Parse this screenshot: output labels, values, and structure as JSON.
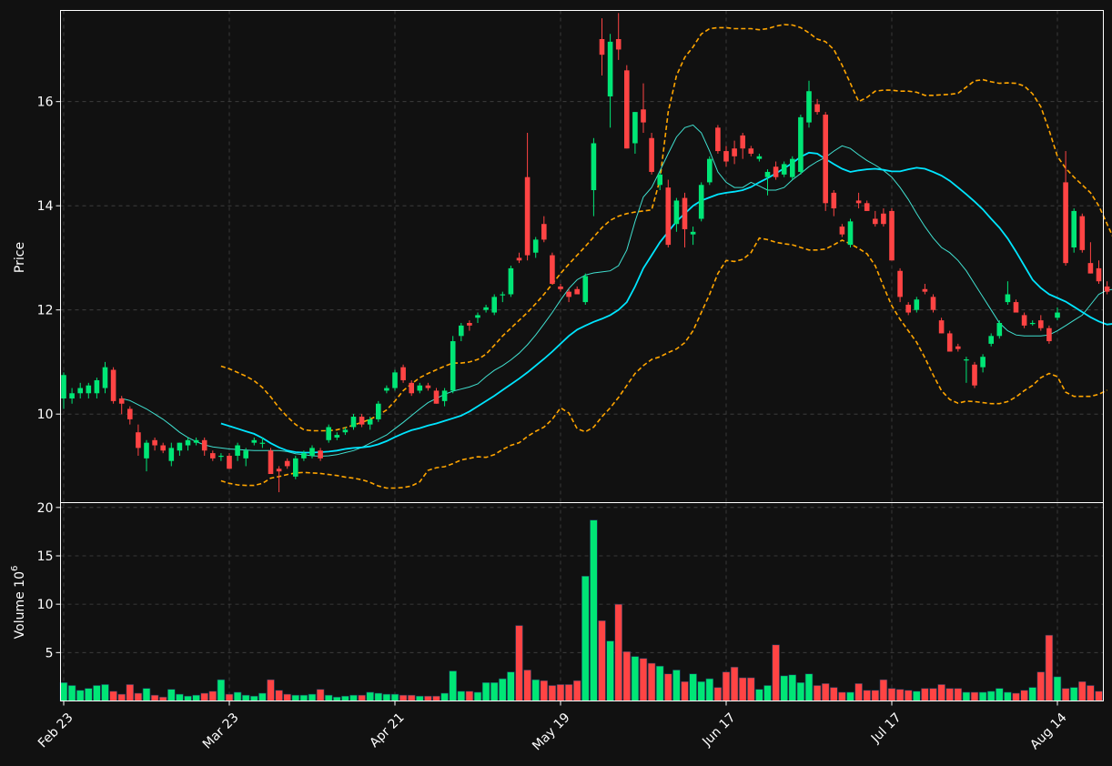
{
  "chart_data": {
    "type": "candlestick",
    "style": {
      "background": "#111111",
      "up_color": "#00e676",
      "down_color": "#ff4444",
      "sma_short_color": "#40e0d0",
      "sma_long_color": "#00e5ff",
      "band_color": "#ffa500",
      "grid": true
    },
    "price_panel": {
      "ylabel": "Price",
      "ylim": [
        8.3,
        17.75
      ],
      "yticks": [
        "10",
        "12",
        "14",
        "16"
      ],
      "ytick_values": [
        10,
        12,
        14,
        16
      ]
    },
    "volume_panel": {
      "ylabel": "Volume  10",
      "ylabel_exp": "6",
      "ylim": [
        0,
        20.5
      ],
      "yticks": [
        "5",
        "10",
        "15",
        "20"
      ],
      "ytick_values": [
        5,
        10,
        15,
        20
      ]
    },
    "xticks": [
      {
        "label": "Feb 23",
        "index": 0
      },
      {
        "label": "Mar 23",
        "index": 20
      },
      {
        "label": "Apr 21",
        "index": 40
      },
      {
        "label": "May 19",
        "index": 60
      },
      {
        "label": "Jun 17",
        "index": 80
      },
      {
        "label": "Jul 17",
        "index": 100
      },
      {
        "label": "Aug 14",
        "index": 120
      }
    ],
    "ohlc": [
      [
        10.3,
        10.8,
        10.1,
        10.75
      ],
      [
        10.3,
        10.5,
        10.2,
        10.4
      ],
      [
        10.4,
        10.6,
        10.3,
        10.5
      ],
      [
        10.4,
        10.6,
        10.3,
        10.55
      ],
      [
        10.4,
        10.7,
        10.3,
        10.65
      ],
      [
        10.5,
        11.0,
        10.4,
        10.9
      ],
      [
        10.85,
        10.9,
        10.2,
        10.25
      ],
      [
        10.3,
        10.35,
        10.0,
        10.2
      ],
      [
        10.1,
        10.15,
        9.8,
        9.9
      ],
      [
        9.65,
        9.8,
        9.2,
        9.35
      ],
      [
        9.15,
        9.5,
        8.9,
        9.45
      ],
      [
        9.5,
        9.55,
        9.3,
        9.4
      ],
      [
        9.4,
        9.45,
        9.25,
        9.3
      ],
      [
        9.1,
        9.45,
        9.0,
        9.35
      ],
      [
        9.3,
        9.45,
        9.2,
        9.45
      ],
      [
        9.4,
        9.55,
        9.3,
        9.5
      ],
      [
        9.45,
        9.55,
        9.4,
        9.5
      ],
      [
        9.5,
        9.55,
        9.2,
        9.3
      ],
      [
        9.25,
        9.3,
        9.1,
        9.15
      ],
      [
        9.2,
        9.25,
        9.1,
        9.2
      ],
      [
        9.2,
        9.25,
        8.95,
        8.95
      ],
      [
        9.2,
        9.45,
        9.1,
        9.4
      ],
      [
        9.15,
        9.35,
        9.0,
        9.3
      ],
      [
        9.45,
        9.55,
        9.4,
        9.5
      ],
      [
        9.45,
        9.55,
        9.35,
        9.45
      ],
      [
        9.3,
        9.35,
        8.85,
        8.85
      ],
      [
        8.95,
        9.0,
        8.5,
        8.9
      ],
      [
        9.1,
        9.15,
        8.95,
        9.0
      ],
      [
        8.8,
        9.2,
        8.75,
        9.15
      ],
      [
        9.15,
        9.3,
        9.1,
        9.25
      ],
      [
        9.2,
        9.4,
        9.15,
        9.35
      ],
      [
        9.3,
        9.35,
        9.1,
        9.15
      ],
      [
        9.5,
        9.8,
        9.45,
        9.75
      ],
      [
        9.55,
        9.65,
        9.5,
        9.6
      ],
      [
        9.65,
        9.75,
        9.6,
        9.7
      ],
      [
        9.75,
        10.0,
        9.7,
        9.95
      ],
      [
        9.95,
        10.0,
        9.75,
        9.8
      ],
      [
        9.8,
        9.95,
        9.7,
        9.9
      ],
      [
        9.9,
        10.25,
        9.85,
        10.2
      ],
      [
        10.45,
        10.55,
        10.4,
        10.5
      ],
      [
        10.5,
        10.85,
        10.45,
        10.8
      ],
      [
        10.9,
        10.95,
        10.6,
        10.65
      ],
      [
        10.6,
        10.65,
        10.35,
        10.4
      ],
      [
        10.45,
        10.6,
        10.4,
        10.55
      ],
      [
        10.55,
        10.6,
        10.45,
        10.5
      ],
      [
        10.45,
        10.5,
        10.2,
        10.2
      ],
      [
        10.25,
        10.5,
        10.15,
        10.45
      ],
      [
        10.45,
        11.5,
        10.4,
        11.4
      ],
      [
        11.5,
        11.75,
        11.4,
        11.7
      ],
      [
        11.75,
        11.8,
        11.6,
        11.7
      ],
      [
        11.85,
        11.95,
        11.75,
        11.9
      ],
      [
        12.0,
        12.1,
        11.95,
        12.05
      ],
      [
        11.95,
        12.3,
        11.9,
        12.25
      ],
      [
        12.3,
        12.35,
        12.15,
        12.3
      ],
      [
        12.3,
        12.85,
        12.25,
        12.8
      ],
      [
        13.0,
        13.1,
        12.9,
        12.95
      ],
      [
        14.55,
        15.4,
        12.95,
        13.05
      ],
      [
        13.1,
        13.4,
        13.0,
        13.35
      ],
      [
        13.65,
        13.8,
        13.3,
        13.35
      ],
      [
        13.05,
        13.1,
        12.5,
        12.5
      ],
      [
        12.45,
        12.5,
        12.35,
        12.4
      ],
      [
        12.35,
        12.4,
        12.15,
        12.25
      ],
      [
        12.4,
        12.45,
        12.3,
        12.3
      ],
      [
        12.15,
        12.7,
        12.1,
        12.65
      ],
      [
        14.3,
        15.3,
        13.8,
        15.2
      ],
      [
        17.2,
        17.6,
        16.5,
        16.9
      ],
      [
        16.1,
        17.3,
        15.5,
        17.15
      ],
      [
        17.2,
        17.7,
        16.8,
        17.0
      ],
      [
        16.6,
        16.7,
        15.1,
        15.1
      ],
      [
        15.2,
        15.8,
        15.0,
        15.8
      ],
      [
        15.85,
        16.35,
        15.4,
        15.6
      ],
      [
        15.3,
        15.4,
        14.6,
        14.65
      ],
      [
        14.4,
        14.65,
        14.3,
        14.6
      ],
      [
        14.35,
        14.5,
        13.2,
        13.25
      ],
      [
        13.65,
        14.15,
        13.5,
        14.1
      ],
      [
        14.15,
        14.25,
        13.2,
        13.55
      ],
      [
        13.45,
        13.6,
        13.25,
        13.5
      ],
      [
        13.75,
        14.45,
        13.7,
        14.4
      ],
      [
        14.45,
        14.95,
        14.4,
        14.9
      ],
      [
        15.5,
        15.55,
        15.0,
        15.05
      ],
      [
        15.05,
        15.15,
        14.75,
        14.85
      ],
      [
        15.1,
        15.25,
        14.8,
        14.95
      ],
      [
        15.35,
        15.4,
        14.9,
        15.1
      ],
      [
        15.1,
        15.15,
        14.95,
        15.0
      ],
      [
        14.9,
        15.0,
        14.85,
        14.95
      ],
      [
        14.55,
        14.7,
        14.2,
        14.65
      ],
      [
        14.75,
        14.85,
        14.5,
        14.55
      ],
      [
        14.6,
        14.85,
        14.55,
        14.8
      ],
      [
        14.55,
        14.95,
        14.5,
        14.9
      ],
      [
        14.65,
        15.75,
        14.6,
        15.7
      ],
      [
        15.6,
        16.4,
        15.5,
        16.2
      ],
      [
        15.95,
        16.05,
        15.75,
        15.8
      ],
      [
        15.75,
        15.8,
        13.9,
        14.05
      ],
      [
        14.25,
        14.3,
        13.8,
        13.95
      ],
      [
        13.6,
        13.65,
        13.4,
        13.45
      ],
      [
        13.25,
        13.75,
        13.2,
        13.7
      ],
      [
        14.1,
        14.25,
        13.95,
        14.05
      ],
      [
        14.05,
        14.1,
        13.9,
        13.9
      ],
      [
        13.75,
        13.9,
        13.6,
        13.65
      ],
      [
        13.85,
        13.95,
        13.6,
        13.65
      ],
      [
        13.9,
        13.95,
        12.95,
        12.95
      ],
      [
        12.75,
        12.8,
        12.15,
        12.25
      ],
      [
        12.1,
        12.15,
        11.9,
        11.95
      ],
      [
        12.0,
        12.25,
        11.95,
        12.2
      ],
      [
        12.4,
        12.5,
        12.3,
        12.35
      ],
      [
        12.25,
        12.3,
        11.95,
        12.0
      ],
      [
        11.8,
        11.85,
        11.55,
        11.55
      ],
      [
        11.55,
        11.6,
        11.2,
        11.2
      ],
      [
        11.3,
        11.35,
        11.2,
        11.25
      ],
      [
        11.05,
        11.1,
        10.6,
        11.05
      ],
      [
        10.95,
        11.0,
        10.5,
        10.55
      ],
      [
        10.9,
        11.15,
        10.8,
        11.1
      ],
      [
        11.35,
        11.55,
        11.3,
        11.5
      ],
      [
        11.5,
        11.8,
        11.45,
        11.75
      ],
      [
        12.15,
        12.55,
        12.1,
        12.3
      ],
      [
        12.15,
        12.2,
        11.95,
        11.95
      ],
      [
        11.9,
        11.95,
        11.65,
        11.7
      ],
      [
        11.75,
        11.8,
        11.7,
        11.75
      ],
      [
        11.8,
        11.9,
        11.6,
        11.65
      ],
      [
        11.65,
        11.7,
        11.35,
        11.4
      ],
      [
        11.85,
        12.05,
        11.8,
        11.95
      ],
      [
        14.45,
        15.05,
        12.85,
        12.9
      ],
      [
        13.2,
        13.95,
        13.1,
        13.9
      ],
      [
        13.8,
        13.85,
        13.1,
        13.15
      ],
      [
        12.9,
        13.3,
        12.7,
        12.7
      ],
      [
        12.8,
        12.95,
        12.5,
        12.55
      ],
      [
        12.45,
        12.55,
        12.3,
        12.35
      ],
      [
        12.45,
        12.7,
        12.2,
        12.5
      ]
    ],
    "volume": [
      1.9,
      1.6,
      1.1,
      1.3,
      1.6,
      1.7,
      1.0,
      0.7,
      1.7,
      0.8,
      1.3,
      0.6,
      0.4,
      1.2,
      0.7,
      0.5,
      0.6,
      0.8,
      1.0,
      2.2,
      0.7,
      0.9,
      0.6,
      0.5,
      0.8,
      2.2,
      1.1,
      0.7,
      0.6,
      0.6,
      0.7,
      1.2,
      0.6,
      0.4,
      0.5,
      0.6,
      0.6,
      0.9,
      0.8,
      0.7,
      0.7,
      0.6,
      0.6,
      0.5,
      0.5,
      0.5,
      0.8,
      3.1,
      1.0,
      1.0,
      0.9,
      1.9,
      1.9,
      2.3,
      3.0,
      7.8,
      3.2,
      2.2,
      2.1,
      1.6,
      1.7,
      1.7,
      2.1,
      12.9,
      18.7,
      8.3,
      6.2,
      10.0,
      5.1,
      4.6,
      4.4,
      3.9,
      3.6,
      2.8,
      3.2,
      2.0,
      2.8,
      2.0,
      2.3,
      1.4,
      3.0,
      3.5,
      2.4,
      2.4,
      1.2,
      1.6,
      5.8,
      2.6,
      2.7,
      1.9,
      2.8,
      1.6,
      1.8,
      1.4,
      0.9,
      0.9,
      1.8,
      1.1,
      1.1,
      2.2,
      1.3,
      1.2,
      1.1,
      1.0,
      1.3,
      1.3,
      1.7,
      1.3,
      1.3,
      0.9,
      0.9,
      0.9,
      1.0,
      1.3,
      0.9,
      0.8,
      1.1,
      1.4,
      3.0,
      6.8,
      2.5,
      1.3,
      1.4,
      2.0,
      1.6,
      1.0
    ],
    "sma_short_start": 7,
    "sma_short": [
      10.3,
      10.26,
      10.18,
      10.1,
      10.0,
      9.9,
      9.78,
      9.65,
      9.55,
      9.47,
      9.41,
      9.37,
      9.35,
      9.33,
      9.32,
      9.31,
      9.3,
      9.3,
      9.3,
      9.3,
      9.28,
      9.24,
      9.22,
      9.2,
      9.19,
      9.2,
      9.22,
      9.26,
      9.3,
      9.36,
      9.44,
      9.52,
      9.6,
      9.72,
      9.84,
      9.97,
      10.1,
      10.22,
      10.3,
      10.38,
      10.44,
      10.48,
      10.52,
      10.58,
      10.72,
      10.84,
      10.93,
      11.04,
      11.17,
      11.33,
      11.52,
      11.73,
      11.95,
      12.19,
      12.41,
      12.58,
      12.67,
      12.71,
      12.73,
      12.75,
      12.85,
      13.15,
      13.7,
      14.17,
      14.35,
      14.67,
      15.0,
      15.32,
      15.5,
      15.55,
      15.4,
      15.05,
      14.65,
      14.45,
      14.35,
      14.35,
      14.45,
      14.38,
      14.3,
      14.3,
      14.35,
      14.5,
      14.62,
      14.75,
      14.85,
      14.93,
      15.05,
      15.15,
      15.1,
      14.98,
      14.87,
      14.78,
      14.68,
      14.55,
      14.35,
      14.12,
      13.85,
      13.6,
      13.38,
      13.2,
      13.1,
      12.95,
      12.75,
      12.5,
      12.25,
      12.0,
      11.75,
      11.6,
      11.52,
      11.5,
      11.5,
      11.5,
      11.52,
      11.6,
      11.7,
      11.8,
      11.9,
      12.1,
      12.3,
      12.38,
      12.4,
      12.45,
      12.52,
      12.58
    ],
    "sma_long_start": 19,
    "sma_long": [
      9.82,
      9.77,
      9.72,
      9.67,
      9.62,
      9.54,
      9.44,
      9.36,
      9.3,
      9.27,
      9.26,
      9.26,
      9.27,
      9.28,
      9.3,
      9.33,
      9.35,
      9.36,
      9.38,
      9.42,
      9.48,
      9.56,
      9.63,
      9.69,
      9.73,
      9.78,
      9.82,
      9.87,
      9.92,
      9.97,
      10.05,
      10.15,
      10.25,
      10.35,
      10.46,
      10.57,
      10.68,
      10.8,
      10.93,
      11.06,
      11.2,
      11.35,
      11.5,
      11.62,
      11.7,
      11.77,
      11.83,
      11.9,
      12.0,
      12.15,
      12.45,
      12.8,
      13.05,
      13.3,
      13.5,
      13.7,
      13.85,
      14.0,
      14.1,
      14.16,
      14.22,
      14.25,
      14.27,
      14.3,
      14.36,
      14.45,
      14.53,
      14.62,
      14.72,
      14.82,
      14.94,
      15.02,
      15.0,
      14.9,
      14.8,
      14.71,
      14.65,
      14.68,
      14.7,
      14.71,
      14.69,
      14.66,
      14.66,
      14.7,
      14.73,
      14.71,
      14.65,
      14.58,
      14.48,
      14.35,
      14.22,
      14.08,
      13.93,
      13.75,
      13.58,
      13.37,
      13.12,
      12.85,
      12.58,
      12.42,
      12.3,
      12.23,
      12.16,
      12.06,
      11.96,
      11.86,
      11.78,
      11.72,
      11.74,
      11.8,
      11.88,
      11.92,
      11.93,
      11.94,
      11.96,
      11.99,
      12.02,
      12.06
    ],
    "upper_band": [
      10.92,
      10.87,
      10.8,
      10.73,
      10.64,
      10.51,
      10.33,
      10.12,
      9.95,
      9.8,
      9.7,
      9.68,
      9.68,
      9.68,
      9.7,
      9.74,
      9.79,
      9.84,
      9.9,
      9.98,
      10.08,
      10.25,
      10.45,
      10.58,
      10.7,
      10.78,
      10.85,
      10.92,
      10.98,
      10.98,
      11.0,
      11.05,
      11.15,
      11.32,
      11.5,
      11.65,
      11.8,
      11.95,
      12.12,
      12.3,
      12.5,
      12.7,
      12.88,
      13.05,
      13.22,
      13.4,
      13.58,
      13.72,
      13.8,
      13.85,
      13.88,
      13.9,
      13.92,
      14.5,
      15.8,
      16.5,
      16.85,
      17.05,
      17.3,
      17.4,
      17.42,
      17.42,
      17.4,
      17.4,
      17.4,
      17.38,
      17.4,
      17.45,
      17.48,
      17.47,
      17.42,
      17.32,
      17.2,
      17.15,
      17.0,
      16.7,
      16.35,
      16.0,
      16.08,
      16.2,
      16.22,
      16.22,
      16.2,
      16.2,
      16.18,
      16.12,
      16.12,
      16.13,
      16.14,
      16.16,
      16.28,
      16.4,
      16.42,
      16.38,
      16.35,
      16.36,
      16.35,
      16.3,
      16.15,
      15.9,
      15.45,
      14.95,
      14.72,
      14.55,
      14.4,
      14.25,
      14.0,
      13.65,
      13.3,
      12.95,
      12.7,
      12.65,
      12.92,
      13.3,
      13.45,
      13.52,
      13.56,
      13.6,
      13.65,
      13.68
    ],
    "lower_band": [
      8.72,
      8.67,
      8.64,
      8.63,
      8.63,
      8.67,
      8.77,
      8.8,
      8.84,
      8.87,
      8.88,
      8.87,
      8.86,
      8.84,
      8.82,
      8.79,
      8.77,
      8.74,
      8.69,
      8.62,
      8.58,
      8.58,
      8.59,
      8.62,
      8.7,
      8.92,
      8.97,
      8.99,
      9.05,
      9.12,
      9.15,
      9.18,
      9.17,
      9.22,
      9.32,
      9.4,
      9.45,
      9.57,
      9.67,
      9.75,
      9.9,
      10.12,
      10.02,
      9.72,
      9.66,
      9.75,
      9.95,
      10.12,
      10.32,
      10.55,
      10.78,
      10.93,
      11.05,
      11.1,
      11.18,
      11.25,
      11.37,
      11.6,
      11.95,
      12.3,
      12.7,
      12.95,
      12.93,
      12.97,
      13.1,
      13.38,
      13.35,
      13.3,
      13.27,
      13.25,
      13.2,
      13.15,
      13.15,
      13.17,
      13.25,
      13.34,
      13.27,
      13.18,
      13.08,
      12.85,
      12.45,
      12.08,
      11.82,
      11.6,
      11.38,
      11.08,
      10.75,
      10.45,
      10.28,
      10.21,
      10.25,
      10.24,
      10.22,
      10.2,
      10.2,
      10.24,
      10.33,
      10.45,
      10.55,
      10.7,
      10.78,
      10.72,
      10.42,
      10.34,
      10.34,
      10.34,
      10.38,
      10.46
    ]
  }
}
